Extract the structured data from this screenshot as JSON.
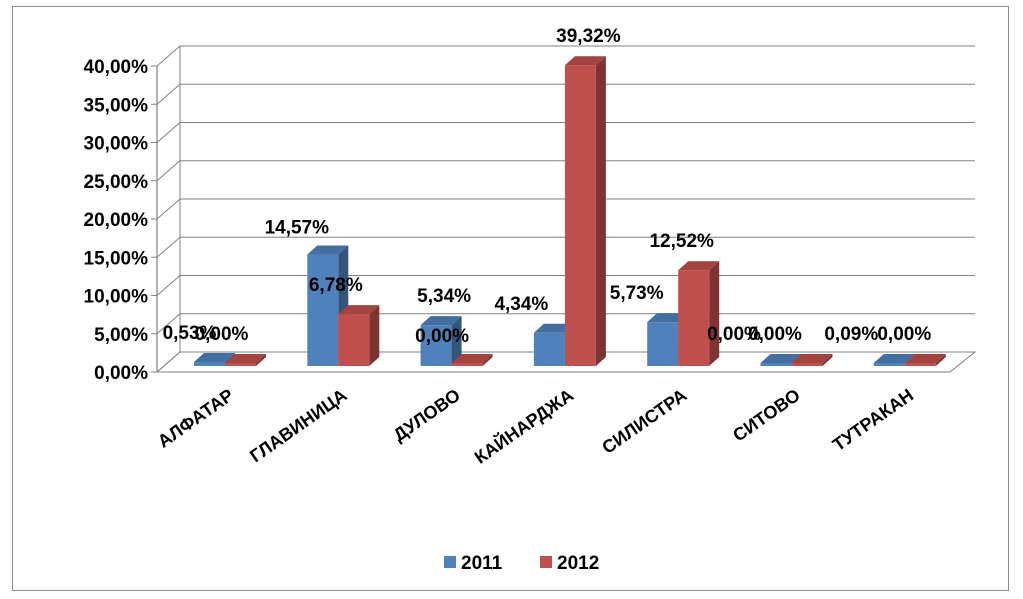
{
  "chart_data": {
    "type": "bar",
    "categories": [
      "АЛФАТАР",
      "ГЛАВИНИЦА",
      "ДУЛОВО",
      "КАЙНАРДЖА",
      "СИЛИСТРА",
      "СИТОВО",
      "ТУТРАКАН"
    ],
    "series": [
      {
        "name": "2011",
        "color": "#4f81bd",
        "values": [
          0.53,
          14.57,
          5.34,
          4.34,
          5.73,
          0.0,
          0.09
        ],
        "labels": [
          "0,53%",
          "14,57%",
          "5,34%",
          "4,34%",
          "5,73%",
          "0,00%",
          "0,09%"
        ]
      },
      {
        "name": "2012",
        "color": "#c0504d",
        "values": [
          0.0,
          6.78,
          0.0,
          39.32,
          12.52,
          0.0,
          0.0
        ],
        "labels": [
          "0,00%",
          "6,78%",
          "0,00%",
          "39,32%",
          "12,52%",
          "0,00%",
          "0,00%"
        ]
      }
    ],
    "ylim": [
      0,
      40
    ],
    "ytick_values": [
      0,
      5,
      10,
      15,
      20,
      25,
      30,
      35,
      40
    ],
    "ytick_labels": [
      "0,00%",
      "5,00%",
      "10,00%",
      "15,00%",
      "20,00%",
      "25,00%",
      "30,00%",
      "35,00%",
      "40,00%"
    ],
    "grid": true,
    "legend_position": "bottom",
    "style": "3d-clustered-column"
  }
}
